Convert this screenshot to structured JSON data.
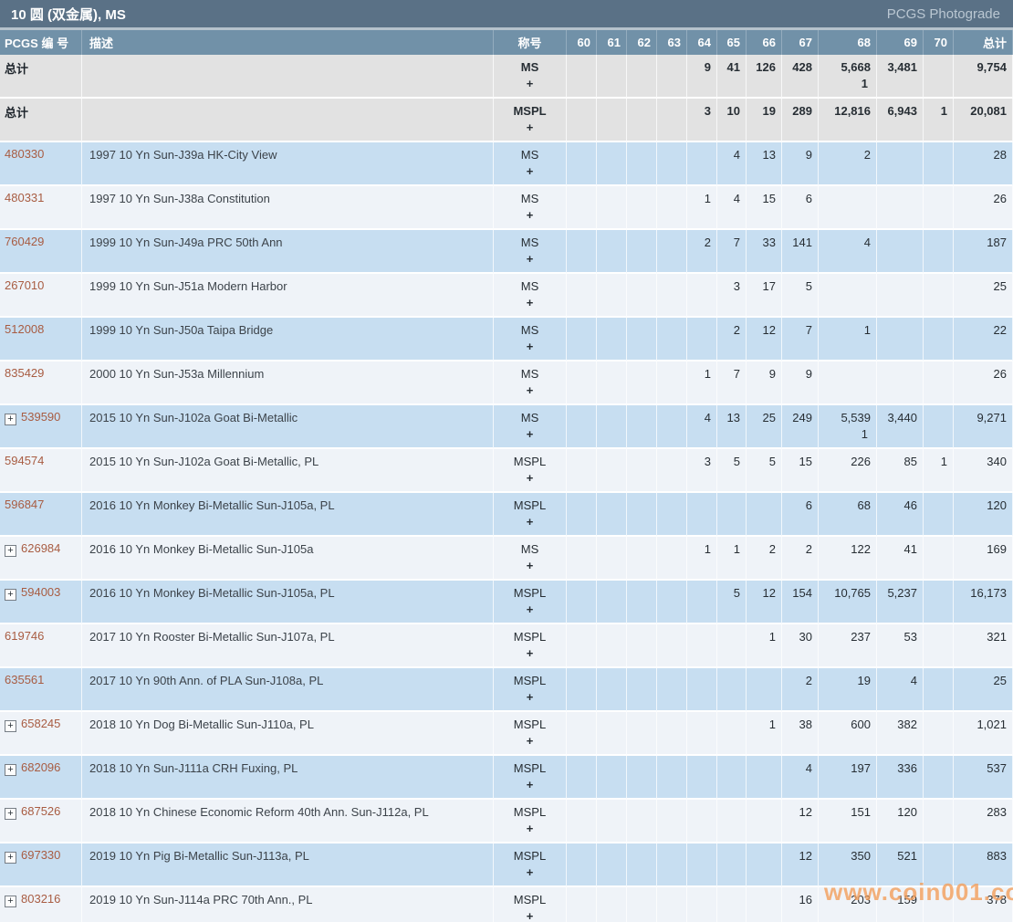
{
  "title": "10 圆 (双金属), MS",
  "photograde_label": "PCGS Photograde",
  "watermark": "www.coin001.com",
  "colors": {
    "title_bar": "#5a7186",
    "header_row": "#7191a8",
    "row_total": "#e2e2e2",
    "row_blue": "#c7def1",
    "row_light": "#eff3f8",
    "pcgs_number_link": "#a85c42",
    "watermark": "#f39e5a"
  },
  "table": {
    "headers": {
      "number": "PCGS 编 号",
      "description": "描述",
      "designation": "称号",
      "grades": [
        "60",
        "61",
        "62",
        "63",
        "64",
        "65",
        "66",
        "67",
        "68",
        "69",
        "70"
      ],
      "total": "总计"
    },
    "rows": [
      {
        "number": "总计",
        "is_total": true,
        "expandable": false,
        "bg": "gray",
        "description": "",
        "designation": "MS",
        "designation_plus": "+",
        "cells": [
          "",
          "",
          "",
          "",
          "9",
          "41",
          "126",
          "428",
          "5,668",
          "3,481",
          "",
          "9,754"
        ],
        "cells_plus": [
          "",
          "",
          "",
          "",
          "",
          "",
          "",
          "",
          "1",
          "",
          "",
          ""
        ]
      },
      {
        "number": "总计",
        "is_total": true,
        "expandable": false,
        "bg": "gray",
        "description": "",
        "designation": "MSPL",
        "designation_plus": "+",
        "cells": [
          "",
          "",
          "",
          "",
          "3",
          "10",
          "19",
          "289",
          "12,816",
          "6,943",
          "1",
          "20,081"
        ]
      },
      {
        "number": "480330",
        "is_total": false,
        "expandable": false,
        "bg": "blue",
        "description": "1997 10 Yn Sun-J39a HK-City View",
        "designation": "MS",
        "designation_plus": "+",
        "cells": [
          "",
          "",
          "",
          "",
          "",
          "4",
          "13",
          "9",
          "2",
          "",
          "",
          "28"
        ]
      },
      {
        "number": "480331",
        "is_total": false,
        "expandable": false,
        "bg": "light",
        "description": "1997 10 Yn Sun-J38a Constitution",
        "designation": "MS",
        "designation_plus": "+",
        "cells": [
          "",
          "",
          "",
          "",
          "1",
          "4",
          "15",
          "6",
          "",
          "",
          "",
          "26"
        ]
      },
      {
        "number": "760429",
        "is_total": false,
        "expandable": false,
        "bg": "blue",
        "description": "1999 10 Yn Sun-J49a PRC 50th Ann",
        "designation": "MS",
        "designation_plus": "+",
        "cells": [
          "",
          "",
          "",
          "",
          "2",
          "7",
          "33",
          "141",
          "4",
          "",
          "",
          "187"
        ]
      },
      {
        "number": "267010",
        "is_total": false,
        "expandable": false,
        "bg": "light",
        "description": "1999 10 Yn Sun-J51a Modern Harbor",
        "designation": "MS",
        "designation_plus": "+",
        "cells": [
          "",
          "",
          "",
          "",
          "",
          "3",
          "17",
          "5",
          "",
          "",
          "",
          "25"
        ]
      },
      {
        "number": "512008",
        "is_total": false,
        "expandable": false,
        "bg": "blue",
        "description": "1999 10 Yn Sun-J50a Taipa Bridge",
        "designation": "MS",
        "designation_plus": "+",
        "cells": [
          "",
          "",
          "",
          "",
          "",
          "2",
          "12",
          "7",
          "1",
          "",
          "",
          "22"
        ]
      },
      {
        "number": "835429",
        "is_total": false,
        "expandable": false,
        "bg": "light",
        "description": "2000 10 Yn Sun-J53a Millennium",
        "designation": "MS",
        "designation_plus": "+",
        "cells": [
          "",
          "",
          "",
          "",
          "1",
          "7",
          "9",
          "9",
          "",
          "",
          "",
          "26"
        ]
      },
      {
        "number": "539590",
        "is_total": false,
        "expandable": true,
        "bg": "blue",
        "description": "2015 10 Yn Sun-J102a Goat Bi-Metallic",
        "designation": "MS",
        "designation_plus": "+",
        "cells": [
          "",
          "",
          "",
          "",
          "4",
          "13",
          "25",
          "249",
          "5,539",
          "3,440",
          "",
          "9,271"
        ],
        "cells_plus": [
          "",
          "",
          "",
          "",
          "",
          "",
          "",
          "",
          "1",
          "",
          "",
          ""
        ]
      },
      {
        "number": "594574",
        "is_total": false,
        "expandable": false,
        "bg": "light",
        "description": "2015 10 Yn Sun-J102a Goat Bi-Metallic, PL",
        "designation": "MSPL",
        "designation_plus": "+",
        "cells": [
          "",
          "",
          "",
          "",
          "3",
          "5",
          "5",
          "15",
          "226",
          "85",
          "1",
          "340"
        ]
      },
      {
        "number": "596847",
        "is_total": false,
        "expandable": false,
        "bg": "blue",
        "description": "2016 10 Yn Monkey Bi-Metallic Sun-J105a, PL",
        "designation": "MSPL",
        "designation_plus": "+",
        "cells": [
          "",
          "",
          "",
          "",
          "",
          "",
          "",
          "6",
          "68",
          "46",
          "",
          "120"
        ]
      },
      {
        "number": "626984",
        "is_total": false,
        "expandable": true,
        "bg": "light",
        "description": "2016 10 Yn Monkey Bi-Metallic Sun-J105a",
        "designation": "MS",
        "designation_plus": "+",
        "cells": [
          "",
          "",
          "",
          "",
          "1",
          "1",
          "2",
          "2",
          "122",
          "41",
          "",
          "169"
        ]
      },
      {
        "number": "594003",
        "is_total": false,
        "expandable": true,
        "bg": "blue",
        "description": "2016 10 Yn Monkey Bi-Metallic Sun-J105a, PL",
        "designation": "MSPL",
        "designation_plus": "+",
        "cells": [
          "",
          "",
          "",
          "",
          "",
          "5",
          "12",
          "154",
          "10,765",
          "5,237",
          "",
          "16,173"
        ]
      },
      {
        "number": "619746",
        "is_total": false,
        "expandable": false,
        "bg": "light",
        "description": "2017 10 Yn Rooster Bi-Metallic Sun-J107a, PL",
        "designation": "MSPL",
        "designation_plus": "+",
        "cells": [
          "",
          "",
          "",
          "",
          "",
          "",
          "1",
          "30",
          "237",
          "53",
          "",
          "321"
        ]
      },
      {
        "number": "635561",
        "is_total": false,
        "expandable": false,
        "bg": "blue",
        "description": "2017 10 Yn 90th Ann. of PLA Sun-J108a, PL",
        "designation": "MSPL",
        "designation_plus": "+",
        "cells": [
          "",
          "",
          "",
          "",
          "",
          "",
          "",
          "2",
          "19",
          "4",
          "",
          "25"
        ]
      },
      {
        "number": "658245",
        "is_total": false,
        "expandable": true,
        "bg": "light",
        "description": "2018 10 Yn Dog Bi-Metallic Sun-J110a, PL",
        "designation": "MSPL",
        "designation_plus": "+",
        "cells": [
          "",
          "",
          "",
          "",
          "",
          "",
          "1",
          "38",
          "600",
          "382",
          "",
          "1,021"
        ]
      },
      {
        "number": "682096",
        "is_total": false,
        "expandable": true,
        "bg": "blue",
        "description": "2018 10 Yn Sun-J111a CRH Fuxing, PL",
        "designation": "MSPL",
        "designation_plus": "+",
        "cells": [
          "",
          "",
          "",
          "",
          "",
          "",
          "",
          "4",
          "197",
          "336",
          "",
          "537"
        ]
      },
      {
        "number": "687526",
        "is_total": false,
        "expandable": true,
        "bg": "light",
        "description": "2018 10 Yn Chinese Economic Reform 40th Ann. Sun-J112a, PL",
        "designation": "MSPL",
        "designation_plus": "+",
        "cells": [
          "",
          "",
          "",
          "",
          "",
          "",
          "",
          "12",
          "151",
          "120",
          "",
          "283"
        ]
      },
      {
        "number": "697330",
        "is_total": false,
        "expandable": true,
        "bg": "blue",
        "description": "2019 10 Yn Pig Bi-Metallic Sun-J113a, PL",
        "designation": "MSPL",
        "designation_plus": "+",
        "cells": [
          "",
          "",
          "",
          "",
          "",
          "",
          "",
          "12",
          "350",
          "521",
          "",
          "883"
        ]
      },
      {
        "number": "803216",
        "is_total": false,
        "expandable": true,
        "bg": "light",
        "description": "2019 10 Yn Sun-J114a PRC 70th Ann., PL",
        "designation": "MSPL",
        "designation_plus": "+",
        "cells": [
          "",
          "",
          "",
          "",
          "",
          "",
          "",
          "16",
          "203",
          "159",
          "",
          "378"
        ]
      }
    ]
  }
}
